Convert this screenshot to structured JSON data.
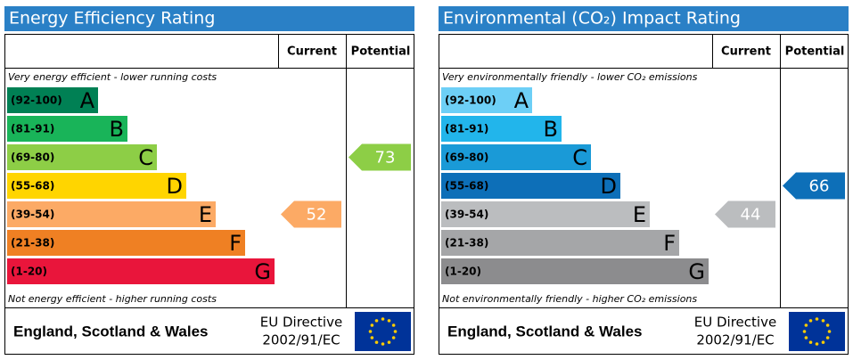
{
  "panels": [
    {
      "title": "Energy Efficiency Rating",
      "current_header": "Current",
      "potential_header": "Potential",
      "top_note": "Very energy efficient - lower running costs",
      "bottom_note": "Not energy efficient - higher running costs",
      "bands": [
        {
          "range": "(92-100)",
          "letter": "A",
          "color": "#008054"
        },
        {
          "range": "(81-91)",
          "letter": "B",
          "color": "#19b459"
        },
        {
          "range": "(69-80)",
          "letter": "C",
          "color": "#8dce46"
        },
        {
          "range": "(55-68)",
          "letter": "D",
          "color": "#ffd500"
        },
        {
          "range": "(39-54)",
          "letter": "E",
          "color": "#fcaa65"
        },
        {
          "range": "(21-38)",
          "letter": "F",
          "color": "#ef8023"
        },
        {
          "range": "(1-20)",
          "letter": "G",
          "color": "#e9153b"
        }
      ],
      "current": 52,
      "potential": 73,
      "region": "England, Scotland & Wales",
      "directive": "EU Directive",
      "directive_code": "2002/91/EC"
    },
    {
      "title": "Environmental (CO₂) Impact Rating",
      "current_header": "Current",
      "potential_header": "Potential",
      "top_note": "Very environmentally friendly - lower CO₂ emissions",
      "bottom_note": "Not environmentally friendly - higher CO₂ emissions",
      "bands": [
        {
          "range": "(92-100)",
          "letter": "A",
          "color": "#6dcff6"
        },
        {
          "range": "(81-91)",
          "letter": "B",
          "color": "#22b5eb"
        },
        {
          "range": "(69-80)",
          "letter": "C",
          "color": "#1a9ad7"
        },
        {
          "range": "(55-68)",
          "letter": "D",
          "color": "#0d6fb8"
        },
        {
          "range": "(39-54)",
          "letter": "E",
          "color": "#bbbdbf"
        },
        {
          "range": "(21-38)",
          "letter": "F",
          "color": "#a5a6a8"
        },
        {
          "range": "(1-20)",
          "letter": "G",
          "color": "#8c8c8e"
        }
      ],
      "current": 44,
      "potential": 66,
      "region": "England, Scotland & Wales",
      "directive": "EU Directive",
      "directive_code": "2002/91/EC"
    }
  ]
}
